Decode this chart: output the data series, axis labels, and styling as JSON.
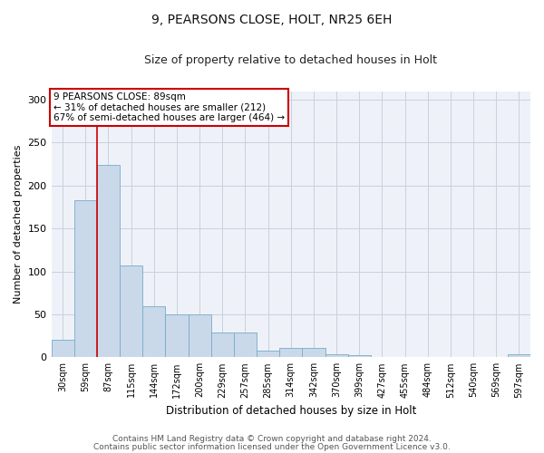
{
  "title1": "9, PEARSONS CLOSE, HOLT, NR25 6EH",
  "title2": "Size of property relative to detached houses in Holt",
  "xlabel": "Distribution of detached houses by size in Holt",
  "ylabel": "Number of detached properties",
  "bar_color": "#c9d9ea",
  "bar_edge_color": "#7aaac8",
  "bar_values": [
    20,
    183,
    224,
    107,
    59,
    50,
    50,
    29,
    29,
    8,
    11,
    11,
    4,
    2,
    0,
    0,
    0,
    0,
    0,
    0,
    3
  ],
  "bar_labels": [
    "30sqm",
    "59sqm",
    "87sqm",
    "115sqm",
    "144sqm",
    "172sqm",
    "200sqm",
    "229sqm",
    "257sqm",
    "285sqm",
    "314sqm",
    "342sqm",
    "370sqm",
    "399sqm",
    "427sqm",
    "455sqm",
    "484sqm",
    "512sqm",
    "540sqm",
    "569sqm",
    "597sqm"
  ],
  "ylim": [
    0,
    310
  ],
  "yticks": [
    0,
    50,
    100,
    150,
    200,
    250,
    300
  ],
  "vline_color": "#cc0000",
  "vline_x": 1.5,
  "annotation_text_line1": "9 PEARSONS CLOSE: 89sqm",
  "annotation_text_line2": "← 31% of detached houses are smaller (212)",
  "annotation_text_line3": "67% of semi-detached houses are larger (464) →",
  "footer1": "Contains HM Land Registry data © Crown copyright and database right 2024.",
  "footer2": "Contains public sector information licensed under the Open Government Licence v3.0.",
  "background_color": "#ffffff",
  "plot_background": "#eef2f8",
  "grid_color": "#c8d0de"
}
